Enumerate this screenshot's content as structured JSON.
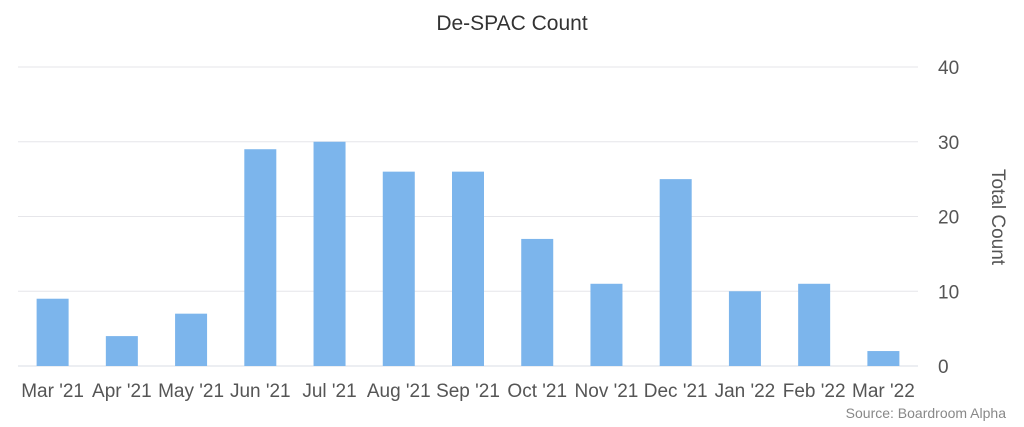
{
  "chart_data": {
    "type": "bar",
    "title": "De-SPAC Count",
    "xlabel": "",
    "ylabel": "Total Count",
    "y_axis_position": "right",
    "ylim": [
      0,
      40
    ],
    "yticks": [
      0,
      10,
      20,
      30,
      40
    ],
    "grid": true,
    "legend": "none",
    "categories": [
      "Mar '21",
      "Apr '21",
      "May '21",
      "Jun '21",
      "Jul '21",
      "Aug '21",
      "Sep '21",
      "Oct '21",
      "Nov '21",
      "Dec '21",
      "Jan '22",
      "Feb '22",
      "Mar '22"
    ],
    "series": [
      {
        "values": [
          9,
          4,
          7,
          29,
          30,
          26,
          26,
          17,
          11,
          25,
          10,
          11,
          2
        ],
        "color": "#7cb5ec"
      }
    ],
    "source": "Source: Boardroom Alpha"
  }
}
